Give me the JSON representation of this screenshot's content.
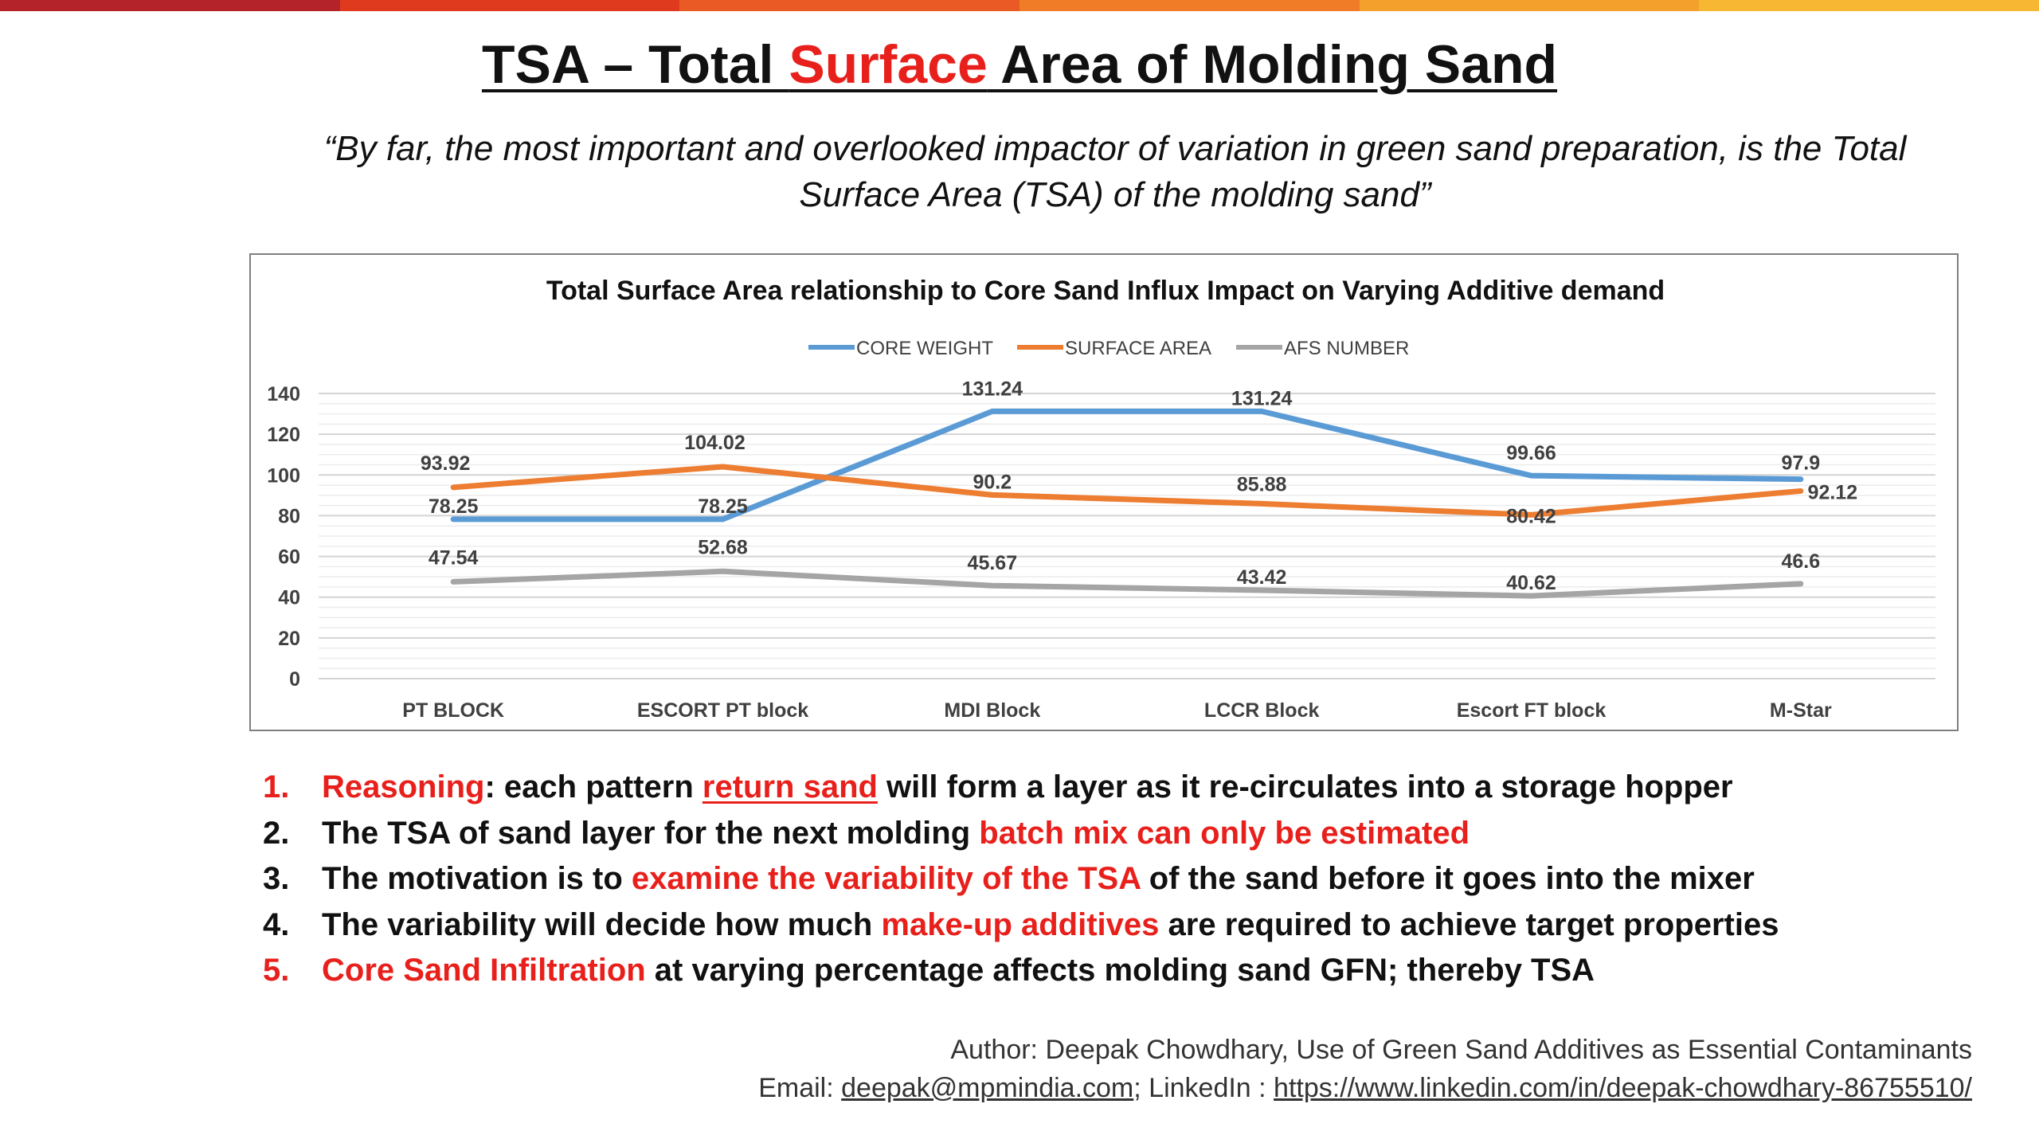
{
  "slide": {
    "title_part1": "TSA – Total ",
    "title_highlight": "Surface",
    "title_part2": " Area of Molding Sand",
    "quote_line1": "“By far, the most important and overlooked impactor of variation in green sand preparation, is the Total",
    "quote_line2": "Surface Area (TSA) of the molding sand”"
  },
  "colors": {
    "accent_red": "#e8201c",
    "topbar": [
      "#b5232a",
      "#e03a1e",
      "#ea5a24",
      "#f07c27",
      "#f4a02c",
      "#f7b733"
    ]
  },
  "chart_data": {
    "type": "line",
    "title": "Total Surface Area relationship to Core Sand Influx Impact on Varying Additive demand",
    "categories": [
      "PT BLOCK",
      "ESCORT PT block",
      "MDI Block",
      "LCCR Block",
      "Escort FT block",
      "M-Star"
    ],
    "series": [
      {
        "name": "CORE WEIGHT",
        "color": "#5b9bd5",
        "values": [
          78.25,
          78.25,
          131.24,
          131.24,
          99.66,
          97.9
        ]
      },
      {
        "name": "SURFACE AREA",
        "color": "#ed7d31",
        "values": [
          93.92,
          104.02,
          90.2,
          85.88,
          80.42,
          92.12
        ]
      },
      {
        "name": "AFS NUMBER",
        "color": "#a5a5a5",
        "values": [
          47.54,
          52.68,
          45.67,
          43.42,
          40.62,
          46.6
        ]
      }
    ],
    "data_labels": [
      [
        "78.25",
        "78.25",
        "131.24",
        "131.24",
        "99.66",
        "97.9"
      ],
      [
        "93.92",
        "104.02",
        "90.2",
        "85.88",
        "80.42",
        "92.12"
      ],
      [
        "47.54",
        "52.68",
        "45.67",
        "43.42",
        "40.62",
        "46.6"
      ]
    ],
    "yticks": [
      0,
      20,
      40,
      60,
      80,
      100,
      120,
      140
    ],
    "ylim": [
      0,
      140
    ],
    "grid": true,
    "legend_position": "top"
  },
  "points": [
    {
      "num": "1.",
      "num_red": true,
      "segments": [
        {
          "text": "Reasoning",
          "red": true
        },
        {
          "text": ": each pattern "
        },
        {
          "text": "return sand",
          "red": true,
          "underline": true
        },
        {
          "text": " will form a layer as it re-circulates into a storage hopper"
        }
      ]
    },
    {
      "num": "2.",
      "num_red": false,
      "segments": [
        {
          "text": "The TSA of sand layer for the next molding "
        },
        {
          "text": "batch mix can only be estimated",
          "red": true
        }
      ]
    },
    {
      "num": "3.",
      "num_red": false,
      "segments": [
        {
          "text": "The motivation is to "
        },
        {
          "text": "examine the variability of the TSA",
          "red": true
        },
        {
          "text": " of the sand before it goes into the mixer"
        }
      ]
    },
    {
      "num": "4.",
      "num_red": false,
      "segments": [
        {
          "text": "The variability will decide how much "
        },
        {
          "text": "make-up additives",
          "red": true
        },
        {
          "text": " are required to achieve target properties"
        }
      ]
    },
    {
      "num": "5.",
      "num_red": true,
      "segments": [
        {
          "text": "Core Sand Infiltration",
          "red": true
        },
        {
          "text": " at varying percentage affects molding sand GFN; thereby TSA"
        }
      ]
    }
  ],
  "footer": {
    "line1": "Author: Deepak Chowdhary, Use of Green Sand Additives as Essential Contaminants",
    "email_label": "Email: ",
    "email": "deepak@mpmindia.com",
    "linkedin_label": "; LinkedIn : ",
    "linkedin_url": "https://www.linkedin.com/in/deepak-chowdhary-86755510/"
  }
}
